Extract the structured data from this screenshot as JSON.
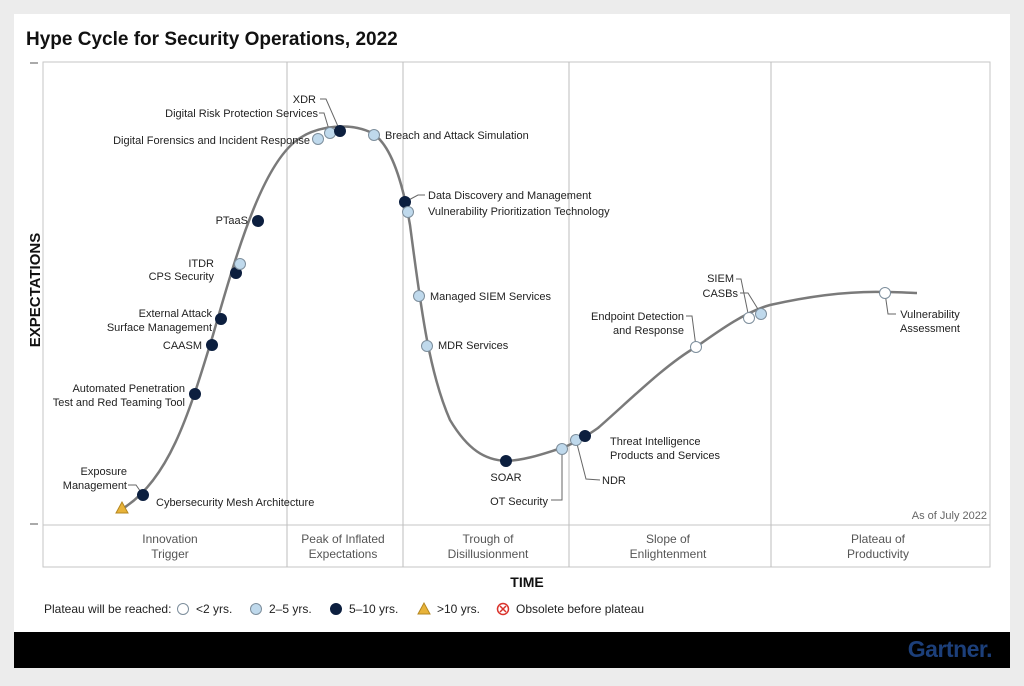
{
  "chart_data": {
    "type": "hype-cycle",
    "title": "Hype Cycle for Security Operations, 2022",
    "xlabel": "TIME",
    "ylabel": "EXPECTATIONS",
    "as_of": "As of July 2022",
    "phases": [
      "Innovation Trigger",
      "Peak of Inflated Expectations",
      "Trough of Disillusionment",
      "Slope of Enlightenment",
      "Plateau of Productivity"
    ],
    "legend": {
      "title": "Plateau will be reached:",
      "items": [
        {
          "key": "lt2",
          "label": "<2 yrs."
        },
        {
          "key": "2to5",
          "label": "2–5 yrs."
        },
        {
          "key": "5to10",
          "label": "5–10 yrs."
        },
        {
          "key": "gt10",
          "label": ">10 yrs."
        },
        {
          "key": "obsolete",
          "label": "Obsolete before plateau"
        }
      ]
    },
    "colors": {
      "lt2": "#ffffff",
      "2to5": "#bfd9ec",
      "5to10": "#0c1f3f",
      "gt10": "#e8b339",
      "obsolete": "#d9322b",
      "curve": "#7a7a7a"
    },
    "technologies": [
      {
        "name": "Cybersecurity Mesh Architecture",
        "time_to_plateau": "gt10"
      },
      {
        "name": "Exposure Management",
        "time_to_plateau": "5to10"
      },
      {
        "name": "Automated Penetration Test and Red Teaming Tool",
        "time_to_plateau": "5to10"
      },
      {
        "name": "CAASM",
        "time_to_plateau": "5to10"
      },
      {
        "name": "External Attack Surface Management",
        "time_to_plateau": "5to10"
      },
      {
        "name": "CPS Security",
        "time_to_plateau": "5to10"
      },
      {
        "name": "ITDR",
        "time_to_plateau": "2to5"
      },
      {
        "name": "PTaaS",
        "time_to_plateau": "5to10"
      },
      {
        "name": "Digital Forensics and Incident Response",
        "time_to_plateau": "2to5"
      },
      {
        "name": "Digital Risk Protection Services",
        "time_to_plateau": "2to5"
      },
      {
        "name": "XDR",
        "time_to_plateau": "5to10"
      },
      {
        "name": "Breach and Attack Simulation",
        "time_to_plateau": "2to5"
      },
      {
        "name": "Data Discovery and Management",
        "time_to_plateau": "5to10"
      },
      {
        "name": "Vulnerability Prioritization Technology",
        "time_to_plateau": "2to5"
      },
      {
        "name": "Managed SIEM Services",
        "time_to_plateau": "2to5"
      },
      {
        "name": "MDR Services",
        "time_to_plateau": "2to5"
      },
      {
        "name": "SOAR",
        "time_to_plateau": "5to10"
      },
      {
        "name": "OT Security",
        "time_to_plateau": "2to5"
      },
      {
        "name": "NDR",
        "time_to_plateau": "2to5"
      },
      {
        "name": "Threat Intelligence Products and Services",
        "time_to_plateau": "5to10"
      },
      {
        "name": "Endpoint Detection and Response",
        "time_to_plateau": "lt2"
      },
      {
        "name": "SIEM",
        "time_to_plateau": "lt2"
      },
      {
        "name": "CASBs",
        "time_to_plateau": "2to5"
      },
      {
        "name": "Vulnerability Assessment",
        "time_to_plateau": "lt2"
      }
    ]
  },
  "brand": "Gartner."
}
